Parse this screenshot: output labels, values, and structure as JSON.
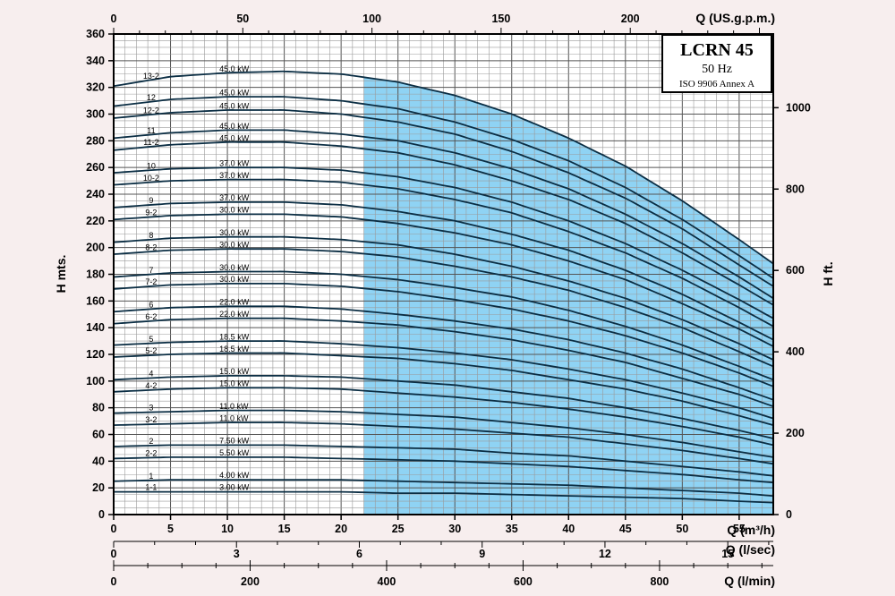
{
  "chart_data": {
    "type": "line",
    "title": "LCRN 45",
    "subtitle": "50 Hz",
    "standard": "ISO 9906 Annex A",
    "ylabel": "H mts.",
    "ylabel_right": "H ft.",
    "xlabel": "Q (m³/h)",
    "xlabel_top": "Q (US.g.p.m.)",
    "xlabel_2": "Q (l/sec)",
    "xlabel_3": "Q (l/min)",
    "xlim": [
      0,
      58
    ],
    "ylim": [
      0,
      360
    ],
    "x_ticks": [
      0,
      5,
      10,
      15,
      20,
      25,
      30,
      35,
      40,
      45,
      50,
      55
    ],
    "y_ticks": [
      0,
      20,
      40,
      60,
      80,
      100,
      120,
      140,
      160,
      180,
      200,
      220,
      240,
      260,
      280,
      300,
      320,
      340,
      360
    ],
    "ft_ticks": [
      0,
      200,
      400,
      600,
      800,
      1000
    ],
    "gpm_ticks": [
      0,
      50,
      100,
      150,
      200
    ],
    "ls_ticks": [
      0,
      3,
      6,
      9,
      12,
      15
    ],
    "lmin_ticks": [
      0,
      200,
      400,
      600,
      800
    ],
    "grid": true,
    "operating_range": [
      22,
      58
    ],
    "operating_range_color": "#8fd3f4",
    "curve_color": "#0b2e44",
    "q_points": [
      0,
      5,
      10,
      15,
      20,
      25,
      30,
      35,
      40,
      45,
      50,
      55,
      58
    ],
    "series": [
      {
        "name": "13-2",
        "kw": "45.0 kW",
        "values": [
          321,
          328,
          331,
          332,
          330,
          324,
          314,
          300,
          282,
          261,
          235,
          206,
          188
        ]
      },
      {
        "name": "12",
        "kw": "45.0 kW",
        "values": [
          306,
          311,
          313,
          313,
          310,
          304,
          294,
          281,
          265,
          245,
          221,
          194,
          177
        ]
      },
      {
        "name": "12-2",
        "kw": "45.0 kW",
        "values": [
          297,
          301,
          303,
          303,
          300,
          294,
          285,
          272,
          256,
          237,
          214,
          187,
          171
        ]
      },
      {
        "name": "11",
        "kw": "45.0 kW",
        "values": [
          282,
          286,
          288,
          288,
          285,
          280,
          271,
          259,
          244,
          225,
          203,
          178,
          162
        ]
      },
      {
        "name": "11-2",
        "kw": "45.0 kW",
        "values": [
          273,
          277,
          279,
          279,
          276,
          271,
          262,
          250,
          236,
          218,
          196,
          172,
          157
        ]
      },
      {
        "name": "10",
        "kw": "37.0 kW",
        "values": [
          256,
          259,
          260,
          260,
          258,
          253,
          245,
          234,
          220,
          203,
          183,
          161,
          147
        ]
      },
      {
        "name": "10-2",
        "kw": "37.0 kW",
        "values": [
          247,
          250,
          251,
          251,
          249,
          244,
          236,
          226,
          212,
          196,
          177,
          155,
          141
        ]
      },
      {
        "name": "9",
        "kw": "37.0 kW",
        "values": [
          230,
          233,
          234,
          234,
          232,
          227,
          220,
          210,
          198,
          183,
          165,
          144,
          131
        ]
      },
      {
        "name": "9-2",
        "kw": "30.0 kW",
        "values": [
          221,
          224,
          225,
          225,
          223,
          218,
          211,
          202,
          190,
          176,
          158,
          139,
          126
        ]
      },
      {
        "name": "8",
        "kw": "30.0 kW",
        "values": [
          204,
          207,
          208,
          208,
          206,
          202,
          195,
          186,
          175,
          162,
          146,
          128,
          116
        ]
      },
      {
        "name": "8-2",
        "kw": "30.0 kW",
        "values": [
          195,
          198,
          199,
          199,
          197,
          193,
          186,
          178,
          168,
          155,
          140,
          122,
          111
        ]
      },
      {
        "name": "7",
        "kw": "30.0 kW",
        "values": [
          178,
          181,
          182,
          182,
          180,
          176,
          170,
          163,
          153,
          141,
          127,
          111,
          101
        ]
      },
      {
        "name": "7-2",
        "kw": "30.0 kW",
        "values": [
          169,
          172,
          173,
          173,
          171,
          167,
          161,
          154,
          145,
          134,
          121,
          106,
          96
        ]
      },
      {
        "name": "6",
        "kw": "22.0 kW",
        "values": [
          152,
          155,
          156,
          156,
          154,
          150,
          145,
          139,
          131,
          121,
          109,
          95,
          86
        ]
      },
      {
        "name": "6-2",
        "kw": "22.0 kW",
        "values": [
          143,
          146,
          147,
          147,
          145,
          142,
          137,
          131,
          123,
          114,
          102,
          90,
          81
        ]
      },
      {
        "name": "5",
        "kw": "18.5 kW",
        "values": [
          127,
          129,
          130,
          130,
          128,
          125,
          121,
          116,
          109,
          101,
          91,
          80,
          72
        ]
      },
      {
        "name": "5-2",
        "kw": "18.5 kW",
        "values": [
          118,
          120,
          121,
          121,
          119,
          117,
          113,
          108,
          101,
          94,
          85,
          74,
          67
        ]
      },
      {
        "name": "4",
        "kw": "15.0 kW",
        "values": [
          101,
          103,
          104,
          104,
          103,
          100,
          97,
          92,
          87,
          80,
          72,
          63,
          57
        ]
      },
      {
        "name": "4-2",
        "kw": "15.0 kW",
        "values": [
          92,
          94,
          95,
          95,
          94,
          91,
          88,
          84,
          79,
          73,
          66,
          58,
          52
        ]
      },
      {
        "name": "3",
        "kw": "11.0 kW",
        "values": [
          76,
          77,
          78,
          78,
          77,
          75,
          73,
          69,
          65,
          60,
          54,
          47,
          43
        ]
      },
      {
        "name": "3-2",
        "kw": "11.0 kW",
        "values": [
          67,
          68,
          69,
          69,
          68,
          66,
          64,
          61,
          58,
          53,
          48,
          42,
          38
        ]
      },
      {
        "name": "2",
        "kw": "7.50 kW",
        "values": [
          51,
          52,
          52,
          52,
          51,
          50,
          49,
          46,
          44,
          40,
          36,
          32,
          29
        ]
      },
      {
        "name": "2-2",
        "kw": "5.50 kW",
        "values": [
          42,
          43,
          43,
          43,
          42,
          41,
          40,
          38,
          36,
          33,
          30,
          26,
          24
        ]
      },
      {
        "name": "1",
        "kw": "4.00 kW",
        "values": [
          25,
          26,
          26,
          26,
          26,
          25,
          24,
          23,
          22,
          20,
          18,
          16,
          14
        ]
      },
      {
        "name": "1-1",
        "kw": "3.00 kW",
        "values": [
          17,
          17,
          17,
          17,
          17,
          16,
          16,
          15,
          14,
          13,
          12,
          10,
          9
        ]
      }
    ]
  }
}
